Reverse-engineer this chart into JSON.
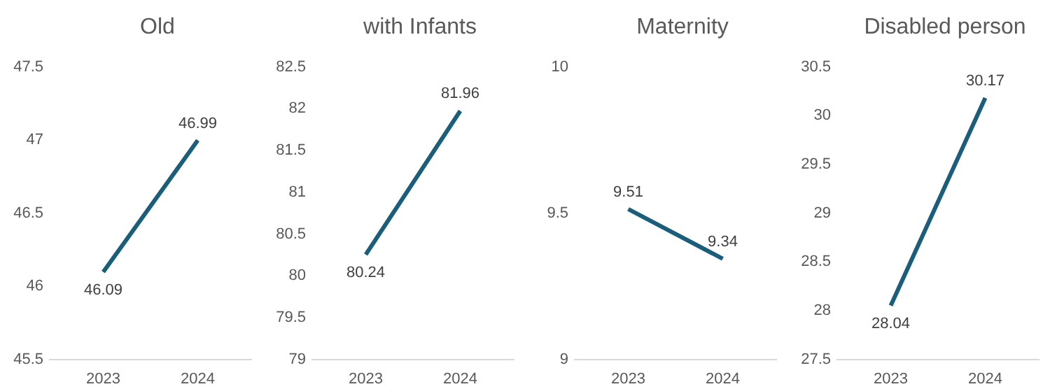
{
  "chart_data": [
    {
      "type": "line",
      "title": "Old",
      "categories": [
        "2023",
        "2024"
      ],
      "series": [
        {
          "color": "#1b5e7b",
          "values": [
            46.09,
            46.99
          ]
        }
      ],
      "ylim": [
        45.5,
        47.5
      ],
      "yticks": [
        45.5,
        46,
        46.5,
        47,
        47.5
      ],
      "data_labels": true,
      "grid": false
    },
    {
      "type": "line",
      "title": "with Infants",
      "categories": [
        "2023",
        "2024"
      ],
      "series": [
        {
          "color": "#1b5e7b",
          "values": [
            80.24,
            81.96
          ]
        }
      ],
      "ylim": [
        79,
        82.5
      ],
      "yticks": [
        79,
        79.5,
        80,
        80.5,
        81,
        81.5,
        82,
        82.5
      ],
      "data_labels": true,
      "grid": false
    },
    {
      "type": "line",
      "title": "Maternity",
      "categories": [
        "2023",
        "2024"
      ],
      "series": [
        {
          "color": "#1b5e7b",
          "values": [
            9.51,
            9.34
          ]
        }
      ],
      "ylim": [
        9,
        10
      ],
      "yticks": [
        9,
        9.5,
        10
      ],
      "data_labels": true,
      "grid": false
    },
    {
      "type": "line",
      "title": "Disabled person",
      "categories": [
        "2023",
        "2024"
      ],
      "series": [
        {
          "color": "#1b5e7b",
          "values": [
            28.04,
            30.17
          ]
        }
      ],
      "ylim": [
        27.5,
        30.5
      ],
      "yticks": [
        27.5,
        28,
        28.5,
        29,
        29.5,
        30,
        30.5
      ],
      "data_labels": true,
      "grid": false
    }
  ]
}
